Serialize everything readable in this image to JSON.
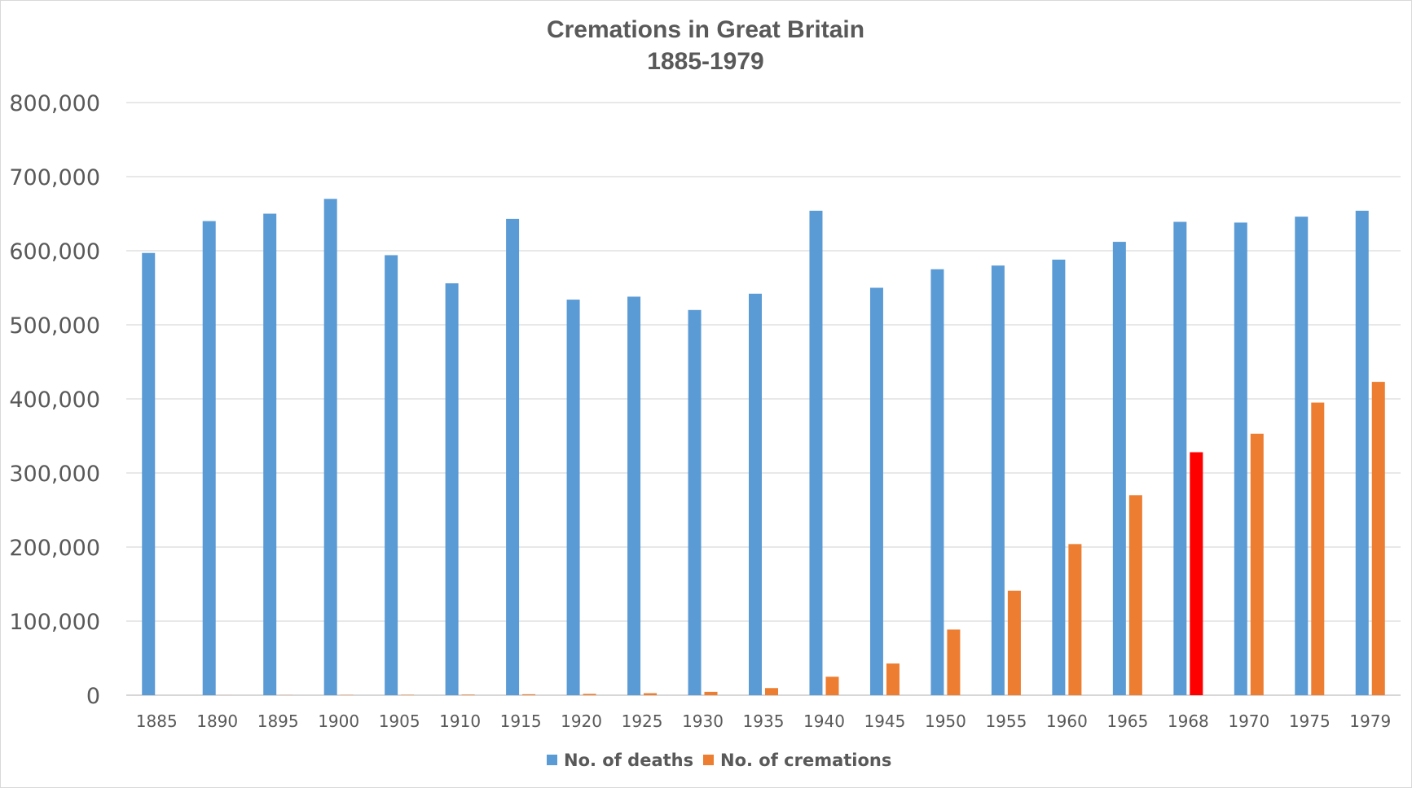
{
  "chart_data": {
    "type": "bar",
    "title": "Cremations  in Great Britain",
    "subtitle": "1885-1979",
    "xlabel": "",
    "ylabel": "",
    "ylim": [
      0,
      800000
    ],
    "yticks": [
      0,
      100000,
      200000,
      300000,
      400000,
      500000,
      600000,
      700000,
      800000
    ],
    "ytick_labels": [
      "0",
      "100,000",
      "200,000",
      "300,000",
      "400,000",
      "500,000",
      "600,000",
      "700,000",
      "800,000"
    ],
    "grid": true,
    "legend_position": "bottom",
    "categories": [
      "1885",
      "1890",
      "1895",
      "1900",
      "1905",
      "1910",
      "1915",
      "1920",
      "1925",
      "1930",
      "1935",
      "1940",
      "1945",
      "1950",
      "1955",
      "1960",
      "1965",
      "1968",
      "1970",
      "1975",
      "1979"
    ],
    "series": [
      {
        "name": "No. of deaths",
        "color": "#5b9bd5",
        "values": [
          597000,
          640000,
          650000,
          670000,
          594000,
          556000,
          643000,
          534000,
          538000,
          520000,
          542000,
          654000,
          550000,
          575000,
          580000,
          588000,
          612000,
          639000,
          638000,
          646000,
          654000
        ]
      },
      {
        "name": "No. of cremations",
        "color": "#ed7d31",
        "highlight": {
          "category": "1968",
          "color": "#ff0000"
        },
        "values": [
          3,
          104,
          209,
          444,
          604,
          840,
          1279,
          1796,
          2701,
          4533,
          9614,
          24917,
          42780,
          88590,
          141000,
          204000,
          270000,
          328000,
          353000,
          395000,
          423000
        ]
      }
    ]
  }
}
